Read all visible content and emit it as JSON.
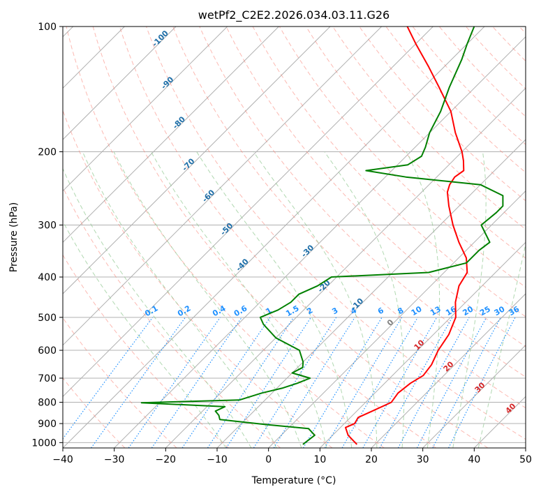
{
  "chart_data": {
    "type": "skewt",
    "title": "wetPf2_C2E2.2026.034.03.11.G26",
    "xlabel": "Temperature (°C)",
    "ylabel": "Pressure (hPa)",
    "xlim": [
      -40,
      50
    ],
    "ylim": [
      1030,
      100
    ],
    "y_scale": "log",
    "x_ticks": [
      "−40",
      "−30",
      "−20",
      "−10",
      "0",
      "10",
      "20",
      "30",
      "40",
      "50"
    ],
    "y_ticks": [
      "100",
      "200",
      "300",
      "400",
      "500",
      "600",
      "700",
      "800",
      "900",
      "1000"
    ],
    "grid": true,
    "colors": {
      "temperature": "#ff0000",
      "dewpoint": "#008000",
      "dry_adiabat": "#fa8072",
      "moist_adiabat": "#90c890",
      "mixing_ratio": "#1e90ff",
      "isotherm": "#808080",
      "isotherm_label": "#1f6fa8",
      "moist_label": "#d62728"
    },
    "temperature_profile": {
      "name": "Temperature",
      "pressure": [
        1010,
        960,
        920,
        900,
        870,
        840,
        800,
        760,
        720,
        690,
        650,
        600,
        550,
        500,
        460,
        420,
        390,
        360,
        330,
        300,
        270,
        250,
        240,
        230,
        222,
        210,
        200,
        180,
        160,
        140,
        125,
        110,
        100
      ],
      "temp": [
        16.5,
        13,
        11,
        12,
        11.5,
        13,
        15,
        14.5,
        15,
        16,
        15.5,
        14,
        13,
        11,
        8,
        5.5,
        4.5,
        1.5,
        -3,
        -7.5,
        -12,
        -15,
        -16,
        -16.5,
        -16,
        -18,
        -20,
        -25,
        -30,
        -37,
        -43,
        -50,
        -55
      ]
    },
    "dewpoint_profile": {
      "name": "Dewpoint",
      "pressure": [
        1010,
        960,
        925,
        905,
        880,
        860,
        840,
        820,
        802,
        790,
        760,
        740,
        720,
        700,
        680,
        660,
        640,
        600,
        560,
        520,
        500,
        480,
        460,
        440,
        420,
        400,
        390,
        370,
        345,
        330,
        300,
        280,
        270,
        255,
        240,
        230,
        222,
        215,
        205,
        195,
        180,
        160,
        140,
        120,
        110,
        100
      ],
      "dewpoint": [
        6,
        6.5,
        4,
        -5,
        -15,
        -16,
        -17.5,
        -16.5,
        -33.5,
        -15,
        -12,
        -9,
        -7,
        -5.5,
        -10,
        -9,
        -10,
        -13,
        -20,
        -25,
        -27,
        -25,
        -24,
        -24,
        -22,
        -21,
        -3,
        2.5,
        2.5,
        3,
        -2,
        -1.5,
        -1.5,
        -3.5,
        -10,
        -26,
        -35,
        -28,
        -27,
        -28,
        -30,
        -32,
        -35,
        -38,
        -40,
        -42
      ]
    },
    "mixing_ratio_labels": [
      "0.1",
      "0.2",
      "0.4",
      "0.6",
      "1",
      "1.5",
      "2",
      "3",
      "4",
      "6",
      "8",
      "10",
      "13",
      "16",
      "20",
      "25",
      "30",
      "36"
    ],
    "mixing_ratio_values": [
      0.1,
      0.2,
      0.4,
      0.6,
      1,
      1.5,
      2,
      3,
      4,
      6,
      8,
      10,
      13,
      16,
      20,
      25,
      30,
      36
    ],
    "isotherm_labels": [
      "-100",
      "-90",
      "-80",
      "-70",
      "-60",
      "-50",
      "-40",
      "-30",
      "-20",
      "-10",
      "0",
      "10",
      "20",
      "30",
      "40"
    ],
    "isotherm_label_values": [
      -100,
      -90,
      -80,
      -70,
      -60,
      -50,
      -40,
      -30,
      -20,
      -10,
      0,
      10,
      20,
      30,
      40
    ]
  }
}
